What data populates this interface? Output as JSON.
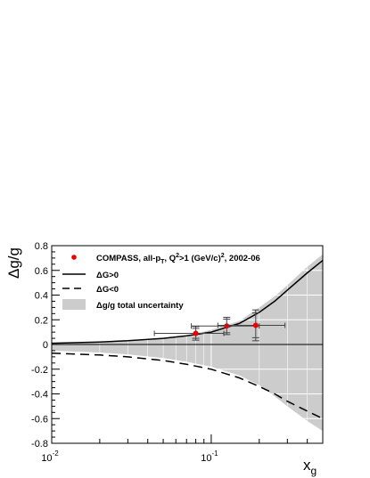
{
  "chart_data": {
    "type": "scatter",
    "x_scale": "log",
    "xlim": [
      0.01,
      0.5
    ],
    "ylim": [
      -0.8,
      0.8
    ],
    "xlabel": {
      "main": "x",
      "sub": "g"
    },
    "ylabel": "Δg/g",
    "x_ticks": [
      {
        "value": 0.01,
        "base": "10",
        "exp": "-2"
      },
      {
        "value": 0.1,
        "base": "10",
        "exp": "-1"
      }
    ],
    "y_ticks": [
      {
        "value": 0.8,
        "label": "0.8"
      },
      {
        "value": 0.6,
        "label": "0.6"
      },
      {
        "value": 0.4,
        "label": "0.4"
      },
      {
        "value": 0.2,
        "label": "0.2"
      },
      {
        "value": 0,
        "label": "0"
      },
      {
        "value": -0.2,
        "label": "-0.2"
      },
      {
        "value": -0.4,
        "label": "-0.4"
      },
      {
        "value": -0.6,
        "label": "-0.6"
      },
      {
        "value": -0.8,
        "label": "-0.8"
      }
    ],
    "grid": true,
    "legend_position": "top-left",
    "legend": [
      {
        "kind": "marker",
        "parts": [
          "COMPASS, all-p",
          "T",
          ", Q",
          "2",
          ">1 (GeV/c)",
          "2",
          ", 2002-06"
        ]
      },
      {
        "kind": "solid",
        "parts": [
          "ΔG>0"
        ]
      },
      {
        "kind": "dashed",
        "parts": [
          "ΔG<0"
        ]
      },
      {
        "kind": "band",
        "parts": [
          "Δg/g total uncertainty"
        ]
      }
    ],
    "points": [
      {
        "x": 0.08,
        "y": 0.09,
        "x_low": 0.044,
        "x_high": 0.12,
        "stat": 0.04,
        "total": 0.055
      },
      {
        "x": 0.125,
        "y": 0.15,
        "x_low": 0.075,
        "x_high": 0.2,
        "stat": 0.055,
        "total": 0.07
      },
      {
        "x": 0.19,
        "y": 0.155,
        "x_low": 0.11,
        "x_high": 0.29,
        "stat": 0.1,
        "total": 0.125
      }
    ],
    "series": [
      {
        "style": "solid",
        "x": [
          0.01,
          0.02,
          0.03,
          0.05,
          0.07,
          0.1,
          0.15,
          0.2,
          0.25,
          0.3,
          0.4,
          0.5
        ],
        "y": [
          0.01,
          0.02,
          0.03,
          0.05,
          0.07,
          0.1,
          0.17,
          0.26,
          0.35,
          0.44,
          0.58,
          0.68
        ]
      },
      {
        "style": "dashed",
        "x": [
          0.01,
          0.02,
          0.03,
          0.05,
          0.07,
          0.1,
          0.15,
          0.2,
          0.25,
          0.3,
          0.4,
          0.5
        ],
        "y": [
          -0.07,
          -0.085,
          -0.1,
          -0.13,
          -0.16,
          -0.2,
          -0.27,
          -0.34,
          -0.4,
          -0.46,
          -0.54,
          -0.6
        ]
      }
    ],
    "band": {
      "x": [
        0.01,
        0.02,
        0.03,
        0.05,
        0.07,
        0.1,
        0.15,
        0.2,
        0.25,
        0.3,
        0.4,
        0.5
      ],
      "upper": [
        0.01,
        0.02,
        0.03,
        0.05,
        0.07,
        0.12,
        0.19,
        0.3,
        0.39,
        0.48,
        0.63,
        0.73
      ],
      "lower": [
        -0.05,
        -0.065,
        -0.08,
        -0.11,
        -0.14,
        -0.18,
        -0.25,
        -0.33,
        -0.42,
        -0.5,
        -0.62,
        -0.7
      ]
    },
    "colors": {
      "band": "#cccccc",
      "grid": "#ffffff",
      "marker": "#ee0000",
      "line": "#000000",
      "errorbar": "#444444"
    }
  }
}
